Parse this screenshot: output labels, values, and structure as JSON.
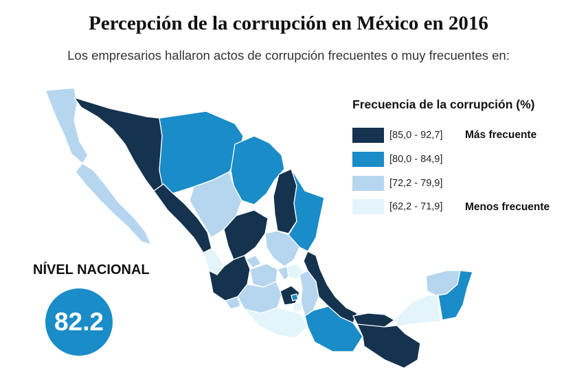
{
  "title": "Percepción de la corrupción en México en 2016",
  "subtitle": "Los empresarios hallaron actos de corrupción frecuentes o muy frecuentes en:",
  "legend": {
    "title": "Frecuencia de la corrupción (%)",
    "items": [
      {
        "range": "[85,0 - 92,7]",
        "color": "#15324e",
        "note": "Más frecuente"
      },
      {
        "range": "[80,0 - 84,9]",
        "color": "#1a8cc8",
        "note": ""
      },
      {
        "range": "[72,2 - 79,9]",
        "color": "#b6d6ef",
        "note": ""
      },
      {
        "range": "[62,2 - 71,9]",
        "color": "#e3f5fb",
        "note": "Menos frecuente"
      }
    ]
  },
  "national": {
    "label": "NÍVEL NACIONAL",
    "value": "82.2"
  },
  "colors": {
    "dark": "#15324e",
    "medium": "#1a8cc8",
    "light": "#b6d6ef",
    "lightest": "#e3f5fb"
  }
}
